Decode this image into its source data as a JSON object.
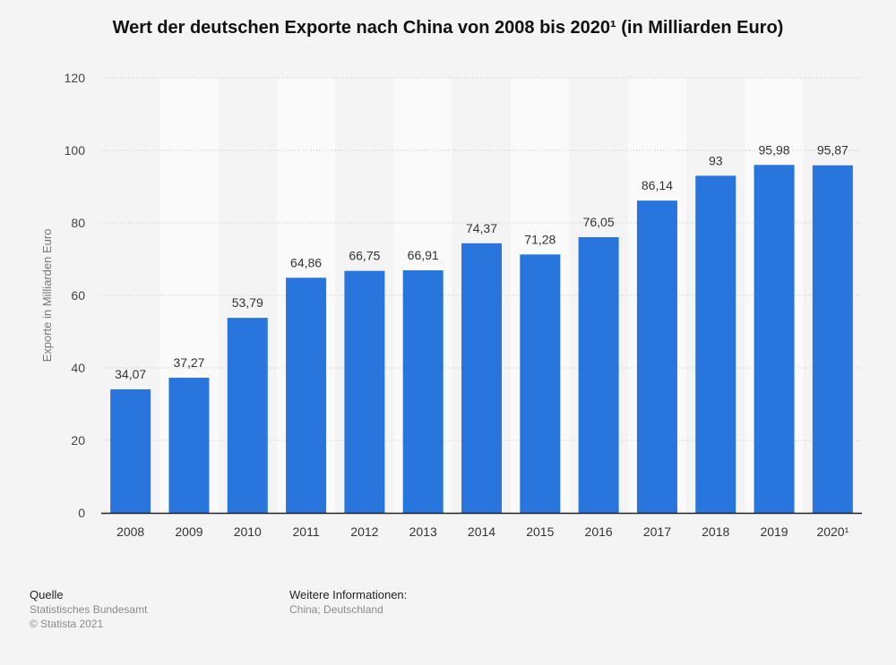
{
  "chart_data": {
    "type": "bar",
    "title": "Wert der deutschen Exporte nach China von 2008 bis 2020¹ (in Milliarden Euro)",
    "xlabel": "",
    "ylabel": "Exporte in Milliarden Euro",
    "ylim": [
      0,
      120
    ],
    "yticks": [
      "0",
      "20",
      "40",
      "60",
      "80",
      "100",
      "120"
    ],
    "categories": [
      "2008",
      "2009",
      "2010",
      "2011",
      "2012",
      "2013",
      "2014",
      "2015",
      "2016",
      "2017",
      "2018",
      "2019",
      "2020¹"
    ],
    "values": [
      34.07,
      37.27,
      53.79,
      64.86,
      66.75,
      66.91,
      74.37,
      71.28,
      76.05,
      86.14,
      93,
      95.98,
      95.87
    ],
    "value_labels": [
      "34,07",
      "37,27",
      "53,79",
      "64,86",
      "66,75",
      "66,91",
      "74,37",
      "71,28",
      "76,05",
      "86,14",
      "93",
      "95,98",
      "95,87"
    ],
    "bar_color": "#2876dd",
    "grid": true,
    "legend": "none"
  },
  "footer": {
    "source_heading": "Quelle",
    "source_lines": [
      "Statistisches Bundesamt",
      "© Statista 2021"
    ],
    "info_heading": "Weitere Informationen:",
    "info_lines": [
      "China; Deutschland"
    ]
  }
}
